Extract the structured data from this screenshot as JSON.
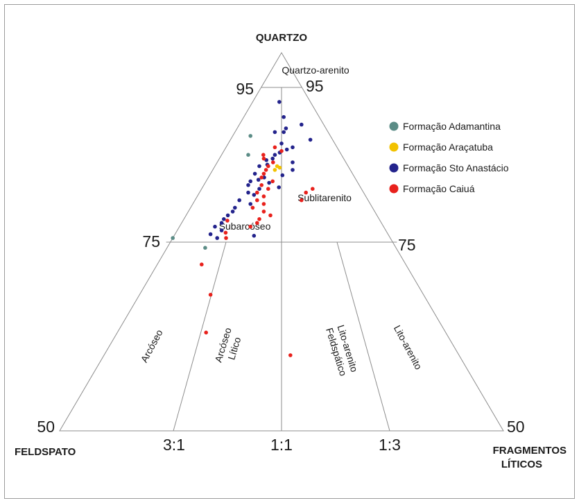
{
  "chart_data": {
    "type": "ternary-scatter",
    "vertices": {
      "top": "QUARTZO",
      "left": "FELDSPATO",
      "right": [
        "FRAGMENTOS",
        "LÍTICOS"
      ]
    },
    "tick_labels": {
      "q95_left": "95",
      "q95_right": "95",
      "q75_left": "75",
      "q75_right": "75",
      "q50_left": "50",
      "q50_right": "50",
      "ratio_3_1": "3:1",
      "ratio_1_1": "1:1",
      "ratio_1_3": "1:3"
    },
    "fields": {
      "quartzo_arenito": "Quartzo-arenito",
      "subarcoseo": "Subarcóseo",
      "sublitarenito": "Sublitarenito",
      "arcoseo": "Arcóseo",
      "arcoseo_litico": [
        "Arcóseo",
        "Lítico"
      ],
      "lito_arenito_feldspatico": [
        "Lito-arenito",
        "Feldspático"
      ],
      "lito_arenito": "Lito-arenito"
    },
    "legend_position": "right",
    "series": [
      {
        "name": "Formação Adamantina",
        "color": "#5b8c86",
        "points": [
          [
            75.5,
            24.5
          ],
          [
            74.2,
            21.5
          ],
          [
            86.5,
            10.5
          ],
          [
            89,
            9
          ]
        ]
      },
      {
        "name": "Formação Araçatuba",
        "color": "#f2c200",
        "points": [
          [
            85,
            8
          ],
          [
            84.5,
            8.5
          ],
          [
            84.8,
            7.8
          ]
        ]
      },
      {
        "name": "Formação Sto Anastácio",
        "color": "#23238c",
        "points": [
          [
            93.5,
            3.5
          ],
          [
            91.5,
            4
          ],
          [
            90.5,
            2.5
          ],
          [
            90,
            4.5
          ],
          [
            89.5,
            5
          ],
          [
            88.5,
            2.5
          ],
          [
            88,
            6
          ],
          [
            89.5,
            6
          ],
          [
            87.5,
            5
          ],
          [
            87.2,
            5.8
          ],
          [
            86.8,
            6.8
          ],
          [
            86.5,
            7.5
          ],
          [
            86,
            8
          ],
          [
            85.8,
            8.8
          ],
          [
            85.5,
            6
          ],
          [
            85.2,
            9
          ],
          [
            85,
            10
          ],
          [
            84.5,
            6.5
          ],
          [
            84,
            11
          ],
          [
            83.8,
            8
          ],
          [
            83.5,
            10.2
          ],
          [
            83.2,
            11
          ],
          [
            83,
            12
          ],
          [
            82.8,
            10
          ],
          [
            82.5,
            12.5
          ],
          [
            82.2,
            9.2
          ],
          [
            82,
            11.5
          ],
          [
            81.5,
            13
          ],
          [
            81.2,
            12.5
          ],
          [
            80.5,
            14.5
          ],
          [
            80,
            13.5
          ],
          [
            79.5,
            15.5
          ],
          [
            79,
            16
          ],
          [
            78.5,
            16.8
          ],
          [
            78,
            17.5
          ],
          [
            77.5,
            18
          ],
          [
            77,
            19
          ],
          [
            76.5,
            18.5
          ],
          [
            76,
            20
          ],
          [
            75.5,
            19.5
          ],
          [
            75.8,
            15.2
          ]
        ]
      },
      {
        "name": "Formação Caiuá",
        "color": "#e8211c",
        "points": [
          [
            87.5,
            7
          ],
          [
            87,
            6.5
          ],
          [
            86.5,
            8.8
          ],
          [
            86,
            9
          ],
          [
            85.5,
            8.2
          ],
          [
            85,
            9
          ],
          [
            84.5,
            9.5
          ],
          [
            84,
            10
          ],
          [
            83.5,
            10.5
          ],
          [
            83,
            9.5
          ],
          [
            82.5,
            11
          ],
          [
            82,
            10.5
          ],
          [
            81.5,
            12
          ],
          [
            81,
            11.5
          ],
          [
            80.5,
            12.5
          ],
          [
            80,
            12
          ],
          [
            79.5,
            13.5
          ],
          [
            79,
            12.5
          ],
          [
            78.5,
            12
          ],
          [
            78,
            13.5
          ],
          [
            77.5,
            14
          ],
          [
            77,
            15
          ],
          [
            82,
            5.5
          ],
          [
            81.5,
            6.5
          ],
          [
            80.5,
            7.5
          ],
          [
            75.5,
            18.5
          ],
          [
            72,
            23
          ],
          [
            68,
            24
          ],
          [
            63,
            27
          ],
          [
            60,
            19
          ],
          [
            77.8,
            17.2
          ],
          [
            76.2,
            18.2
          ]
        ]
      }
    ]
  }
}
